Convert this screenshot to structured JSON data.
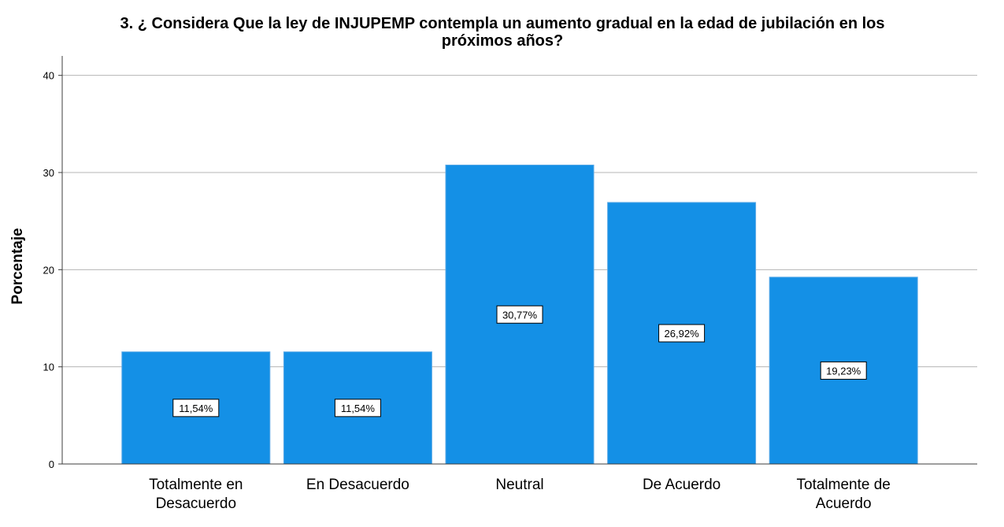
{
  "chart_data": {
    "type": "bar",
    "title": "3. ¿ Considera Que la ley de INJUPEMP contempla un aumento gradual en la edad de jubilación en los próximos años?",
    "title_lines": [
      "3. ¿ Considera Que la ley de INJUPEMP contempla un aumento gradual en la edad de jubilación en los",
      "próximos años?"
    ],
    "xlabel": "",
    "ylabel": "Porcentaje",
    "ylim": [
      0,
      42
    ],
    "yticks": [
      0,
      10,
      20,
      30,
      40
    ],
    "grid": "horizontal",
    "categories": [
      "Totalmente en Desacuerdo",
      "En Desacuerdo",
      "Neutral",
      "De Acuerdo",
      "Totalmente de Acuerdo"
    ],
    "category_lines": [
      [
        "Totalmente en",
        "Desacuerdo"
      ],
      [
        "En Desacuerdo"
      ],
      [
        "Neutral"
      ],
      [
        "De Acuerdo"
      ],
      [
        "Totalmente de",
        "Acuerdo"
      ]
    ],
    "values": [
      11.54,
      11.54,
      30.77,
      26.92,
      19.23
    ],
    "data_labels": [
      "11,54%",
      "11,54%",
      "30,77%",
      "26,92%",
      "19,23%"
    ],
    "bar_color": "#1490e6",
    "grid_color": "#b4b4b4",
    "axis_color": "#3c3c3c"
  }
}
